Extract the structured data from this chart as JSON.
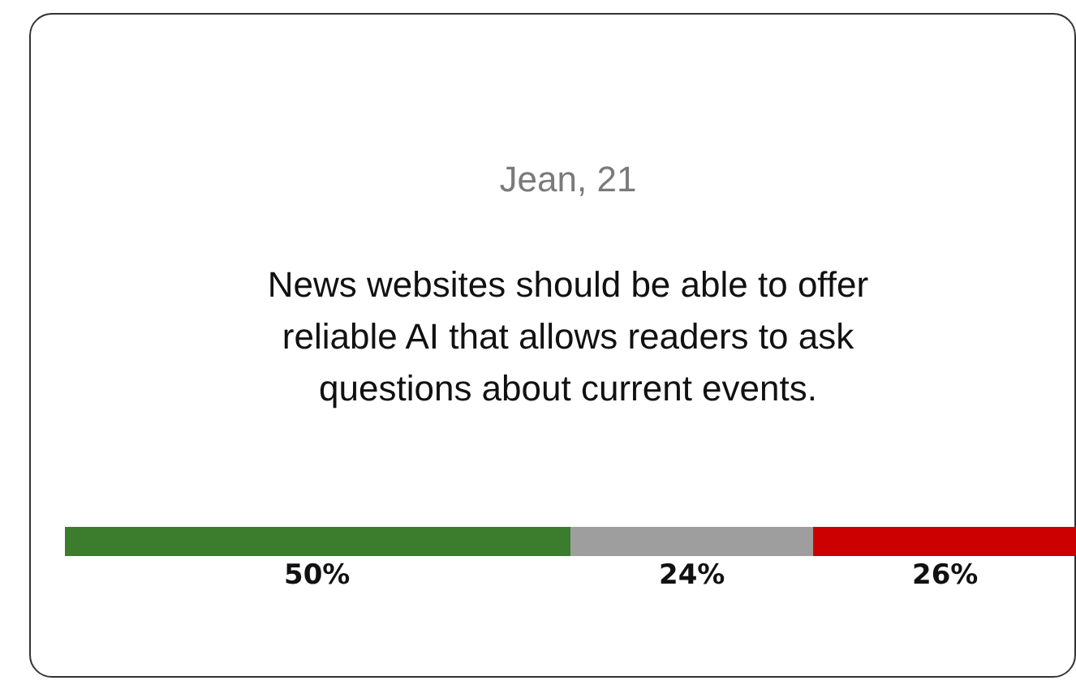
{
  "chart_data": {
    "type": "bar",
    "orientation": "horizontal",
    "stacked": true,
    "title": "Jean, 21",
    "subtitle": "News websites should be able to offer reliable AI that allows readers to ask questions about current events.",
    "categories": [
      null
    ],
    "series": [
      {
        "color": "#3b7d2c",
        "values": [
          50
        ],
        "value_labels": [
          "50%"
        ]
      },
      {
        "color": "#9e9e9e",
        "values": [
          24
        ],
        "value_labels": [
          "24%"
        ]
      },
      {
        "color": "#cc0000",
        "values": [
          26
        ],
        "value_labels": [
          "26%"
        ]
      }
    ]
  }
}
